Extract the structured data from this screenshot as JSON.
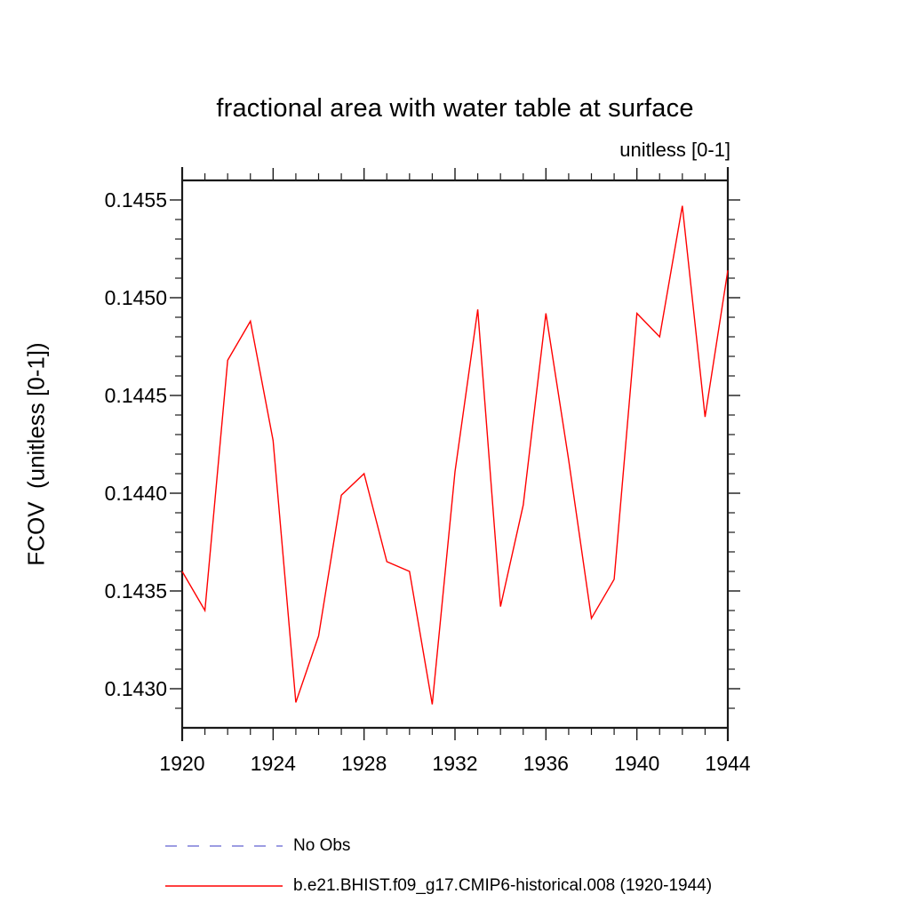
{
  "colors": {
    "axis": "#1a1a1a",
    "text": "#000000",
    "series_red": "#ff0000",
    "no_obs_blue": "#7b7bd8",
    "background": "#ffffff"
  },
  "chart_data": {
    "type": "line",
    "title": "fractional area with water table at surface",
    "subtitle_right": "unitless [0-1]",
    "ylabel": "FCOV  (unitless [0-1])",
    "xlabel": "",
    "xlim": [
      1920,
      1944
    ],
    "ylim": [
      0.1428,
      0.1456
    ],
    "grid": false,
    "x_ticks": [
      {
        "value": 1920,
        "label": "1920"
      },
      {
        "value": 1924,
        "label": "1924"
      },
      {
        "value": 1928,
        "label": "1928"
      },
      {
        "value": 1932,
        "label": "1932"
      },
      {
        "value": 1936,
        "label": "1936"
      },
      {
        "value": 1940,
        "label": "1940"
      },
      {
        "value": 1944,
        "label": "1944"
      }
    ],
    "x_minor_step": 1,
    "y_ticks": [
      {
        "value": 0.1455,
        "label": "0.1455"
      },
      {
        "value": 0.145,
        "label": "0.1450"
      },
      {
        "value": 0.1445,
        "label": "0.1445"
      },
      {
        "value": 0.144,
        "label": "0.1440"
      },
      {
        "value": 0.1435,
        "label": "0.1435"
      },
      {
        "value": 0.143,
        "label": "0.1430"
      }
    ],
    "y_minor_step": 0.0001,
    "x": [
      1920,
      1921,
      1922,
      1923,
      1924,
      1925,
      1926,
      1927,
      1928,
      1929,
      1930,
      1931,
      1932,
      1933,
      1934,
      1935,
      1936,
      1937,
      1938,
      1939,
      1940,
      1941,
      1942,
      1943,
      1944
    ],
    "series": [
      {
        "name": "b.e21.BHIST.f09_g17.CMIP6-historical.008 (1920-1944)",
        "color": "#ff0000",
        "style": "solid",
        "values": [
          0.1436,
          0.1434,
          0.14468,
          0.14488,
          0.14427,
          0.14293,
          0.14327,
          0.14399,
          0.1441,
          0.14365,
          0.1436,
          0.14292,
          0.14411,
          0.14494,
          0.14342,
          0.14394,
          0.14492,
          0.14417,
          0.14336,
          0.14356,
          0.14492,
          0.1448,
          0.14547,
          0.14439,
          0.14514
        ]
      }
    ],
    "legend_position": "below",
    "legend": [
      {
        "label": "No Obs",
        "color": "#7b7bd8",
        "style": "dashed"
      },
      {
        "label": "b.e21.BHIST.f09_g17.CMIP6-historical.008 (1920-1944)",
        "color": "#ff0000",
        "style": "solid"
      }
    ]
  }
}
